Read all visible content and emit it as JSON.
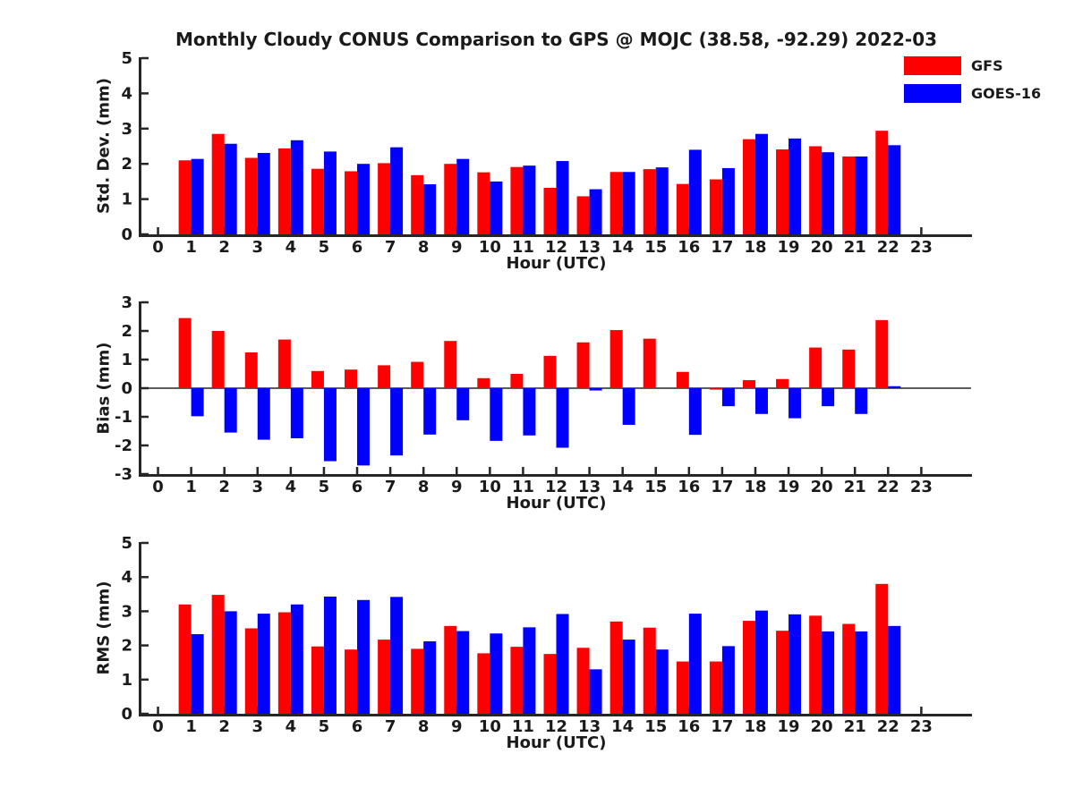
{
  "title": "Monthly Cloudy CONUS Comparison to GPS @ MOJC (38.58, -92.29) 2022-03",
  "legend": {
    "items": [
      {
        "label": "GFS",
        "color": "#ff0000"
      },
      {
        "label": "GOES-16",
        "color": "#0000ff"
      }
    ]
  },
  "colors": {
    "gfs": "#ff0000",
    "goes16": "#0000ff",
    "axis": "#262626",
    "text": "#1a1a1a"
  },
  "chart_data": [
    {
      "type": "bar",
      "panel": "std-dev",
      "ylabel": "Std. Dev. (mm)",
      "xlabel": "Hour (UTC)",
      "ylim": [
        0,
        5
      ],
      "yticks": [
        0,
        1,
        2,
        3,
        4,
        5
      ],
      "categories": [
        0,
        1,
        2,
        3,
        4,
        5,
        6,
        7,
        8,
        9,
        10,
        11,
        12,
        13,
        14,
        15,
        16,
        17,
        18,
        19,
        20,
        21,
        22,
        23
      ],
      "grid": false,
      "legend_position": "upper-right-outside",
      "series": [
        {
          "name": "GFS",
          "color": "#ff0000",
          "values": [
            null,
            2.1,
            2.85,
            2.17,
            2.44,
            1.86,
            1.79,
            2.02,
            1.68,
            2.0,
            1.76,
            1.91,
            1.32,
            1.08,
            1.77,
            1.85,
            1.43,
            1.56,
            2.7,
            2.41,
            2.5,
            2.21,
            2.94,
            null
          ]
        },
        {
          "name": "GOES-16",
          "color": "#0000ff",
          "values": [
            null,
            2.14,
            2.57,
            2.31,
            2.67,
            2.35,
            2.0,
            2.47,
            1.42,
            2.14,
            1.5,
            1.95,
            2.08,
            1.28,
            1.77,
            1.9,
            2.4,
            1.88,
            2.85,
            2.72,
            2.33,
            2.21,
            2.53,
            null
          ]
        }
      ]
    },
    {
      "type": "bar",
      "panel": "bias",
      "ylabel": "Bias (mm)",
      "xlabel": "Hour (UTC)",
      "ylim": [
        -3,
        3
      ],
      "yticks": [
        -3,
        -2,
        -1,
        0,
        1,
        2,
        3
      ],
      "categories": [
        0,
        1,
        2,
        3,
        4,
        5,
        6,
        7,
        8,
        9,
        10,
        11,
        12,
        13,
        14,
        15,
        16,
        17,
        18,
        19,
        20,
        21,
        22,
        23
      ],
      "grid": false,
      "zero_line": true,
      "series": [
        {
          "name": "GFS",
          "color": "#ff0000",
          "values": [
            null,
            2.45,
            2.0,
            1.25,
            1.7,
            0.6,
            0.65,
            0.8,
            0.92,
            1.65,
            0.35,
            0.5,
            1.13,
            1.6,
            2.03,
            1.73,
            0.57,
            -0.05,
            0.28,
            0.32,
            1.42,
            1.35,
            2.38,
            null
          ]
        },
        {
          "name": "GOES-16",
          "color": "#0000ff",
          "values": [
            null,
            -0.98,
            -1.55,
            -1.8,
            -1.75,
            -2.55,
            -2.7,
            -2.35,
            -1.62,
            -1.12,
            -1.84,
            -1.65,
            -2.08,
            -0.08,
            -1.28,
            0.0,
            -1.63,
            -0.63,
            -0.9,
            -1.05,
            -0.63,
            -0.9,
            0.07,
            null
          ]
        }
      ]
    },
    {
      "type": "bar",
      "panel": "rms",
      "ylabel": "RMS (mm)",
      "xlabel": "Hour (UTC)",
      "ylim": [
        0,
        5
      ],
      "yticks": [
        0,
        1,
        2,
        3,
        4,
        5
      ],
      "categories": [
        0,
        1,
        2,
        3,
        4,
        5,
        6,
        7,
        8,
        9,
        10,
        11,
        12,
        13,
        14,
        15,
        16,
        17,
        18,
        19,
        20,
        21,
        22,
        23
      ],
      "grid": false,
      "series": [
        {
          "name": "GFS",
          "color": "#ff0000",
          "values": [
            null,
            3.2,
            3.48,
            2.5,
            2.97,
            1.97,
            1.88,
            2.17,
            1.9,
            2.57,
            1.77,
            1.96,
            1.75,
            1.93,
            2.7,
            2.52,
            1.53,
            1.53,
            2.72,
            2.43,
            2.87,
            2.63,
            3.8,
            null
          ]
        },
        {
          "name": "GOES-16",
          "color": "#0000ff",
          "values": [
            null,
            2.33,
            3.0,
            2.93,
            3.2,
            3.43,
            3.33,
            3.42,
            2.12,
            2.42,
            2.35,
            2.53,
            2.92,
            1.3,
            2.17,
            1.88,
            2.93,
            1.98,
            3.02,
            2.91,
            2.41,
            2.41,
            2.57,
            null
          ]
        }
      ]
    }
  ]
}
